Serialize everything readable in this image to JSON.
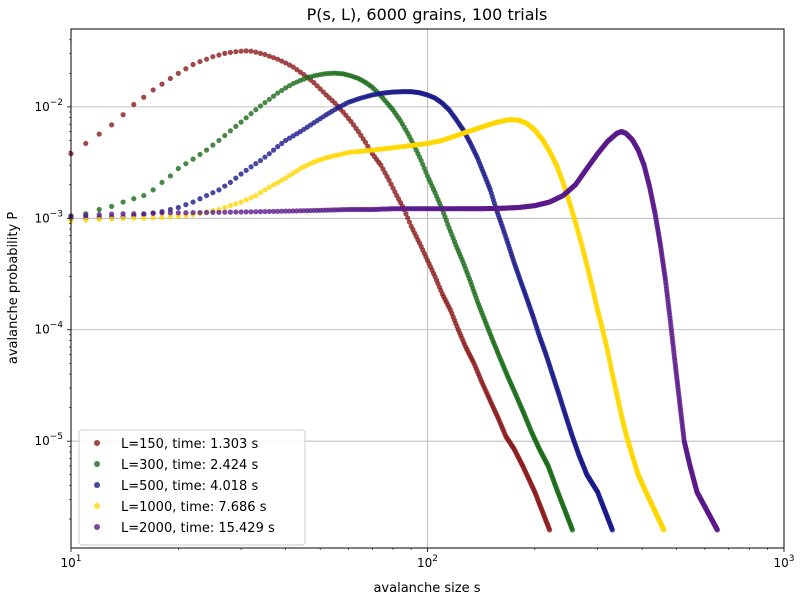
{
  "chart_data": {
    "type": "scatter",
    "title": "P(s, L), 6000 grains, 100 trials",
    "xlabel": "avalanche size s",
    "ylabel": "avalanche probability P",
    "xscale": "log",
    "yscale": "log",
    "xlim": [
      10,
      1000
    ],
    "ylim": [
      1.1e-06,
      0.05
    ],
    "grid": true,
    "legend_position": "lower-left",
    "x_ticks": [
      {
        "value": 10,
        "base": "10",
        "exp": "1"
      },
      {
        "value": 100,
        "base": "10",
        "exp": "2"
      },
      {
        "value": 1000,
        "base": "10",
        "exp": "3"
      }
    ],
    "y_ticks": [
      {
        "value": 1e-05,
        "base": "10",
        "exp": "−5"
      },
      {
        "value": 0.0001,
        "base": "10",
        "exp": "−4"
      },
      {
        "value": 0.001,
        "base": "10",
        "exp": "−3"
      },
      {
        "value": 0.01,
        "base": "10",
        "exp": "−2"
      }
    ],
    "series": [
      {
        "name": "L=150, time: 1.303 s",
        "color": "#8b1a1a",
        "points": [
          [
            10,
            0.0038
          ],
          [
            11,
            0.0047
          ],
          [
            12,
            0.0057
          ],
          [
            13,
            0.0069
          ],
          [
            14,
            0.0085
          ],
          [
            15,
            0.0105
          ],
          [
            16,
            0.0122
          ],
          [
            17,
            0.0142
          ],
          [
            18,
            0.016
          ],
          [
            19,
            0.018
          ],
          [
            20,
            0.02
          ],
          [
            21,
            0.022
          ],
          [
            22,
            0.024
          ],
          [
            23,
            0.0255
          ],
          [
            24,
            0.0268
          ],
          [
            25,
            0.0282
          ],
          [
            26,
            0.0292
          ],
          [
            27,
            0.0302
          ],
          [
            28,
            0.0308
          ],
          [
            29,
            0.0313
          ],
          [
            30,
            0.0316
          ],
          [
            31,
            0.0318
          ],
          [
            32,
            0.0316
          ],
          [
            33,
            0.031
          ],
          [
            34,
            0.0302
          ],
          [
            35,
            0.0295
          ],
          [
            36,
            0.0285
          ],
          [
            38,
            0.0268
          ],
          [
            40,
            0.0248
          ],
          [
            42,
            0.0228
          ],
          [
            44,
            0.0205
          ],
          [
            46,
            0.0185
          ],
          [
            48,
            0.0165
          ],
          [
            50,
            0.0145
          ],
          [
            52,
            0.0128
          ],
          [
            55,
            0.0108
          ],
          [
            58,
            0.009
          ],
          [
            61,
            0.0074
          ],
          [
            64,
            0.006
          ],
          [
            67,
            0.0048
          ],
          [
            70,
            0.0038
          ],
          [
            74,
            0.003
          ],
          [
            78,
            0.0022
          ],
          [
            82,
            0.0016
          ],
          [
            86,
            0.0012
          ],
          [
            90,
            0.00085
          ],
          [
            95,
            0.0006
          ],
          [
            100,
            0.00042
          ],
          [
            105,
            0.0003
          ],
          [
            110,
            0.00021
          ],
          [
            116,
            0.00015
          ],
          [
            122,
            0.0001
          ],
          [
            128,
            7e-05
          ],
          [
            135,
            5e-05
          ],
          [
            142,
            3.4e-05
          ],
          [
            150,
            2.3e-05
          ],
          [
            158,
            1.6e-05
          ],
          [
            166,
            1.1e-05
          ],
          [
            175,
            8.5e-06
          ],
          [
            185,
            6e-06
          ],
          [
            200,
            3.5e-06
          ],
          [
            220,
            1.6e-06
          ]
        ]
      },
      {
        "name": "L=300, time: 2.424 s",
        "color": "#1a6b1a",
        "points": [
          [
            10,
            0.00105
          ],
          [
            11,
            0.0011
          ],
          [
            12,
            0.0012
          ],
          [
            13,
            0.00128
          ],
          [
            14,
            0.0014
          ],
          [
            15,
            0.0015
          ],
          [
            16,
            0.0016
          ],
          [
            17,
            0.0018
          ],
          [
            18,
            0.0021
          ],
          [
            19,
            0.0024
          ],
          [
            20,
            0.0028
          ],
          [
            22,
            0.0034
          ],
          [
            24,
            0.0041
          ],
          [
            26,
            0.005
          ],
          [
            28,
            0.0061
          ],
          [
            30,
            0.0073
          ],
          [
            32,
            0.0087
          ],
          [
            34,
            0.0102
          ],
          [
            36,
            0.0117
          ],
          [
            38,
            0.0133
          ],
          [
            40,
            0.0148
          ],
          [
            42,
            0.0162
          ],
          [
            44,
            0.0173
          ],
          [
            46,
            0.0182
          ],
          [
            48,
            0.019
          ],
          [
            50,
            0.0195
          ],
          [
            52,
            0.0199
          ],
          [
            55,
            0.0201
          ],
          [
            58,
            0.0198
          ],
          [
            61,
            0.019
          ],
          [
            64,
            0.018
          ],
          [
            67,
            0.0166
          ],
          [
            70,
            0.015
          ],
          [
            73,
            0.0132
          ],
          [
            76,
            0.0114
          ],
          [
            80,
            0.0094
          ],
          [
            84,
            0.0075
          ],
          [
            88,
            0.0058
          ],
          [
            92,
            0.0044
          ],
          [
            96,
            0.0033
          ],
          [
            100,
            0.0024
          ],
          [
            105,
            0.0017
          ],
          [
            110,
            0.0012
          ],
          [
            115,
            0.00082
          ],
          [
            120,
            0.00058
          ],
          [
            126,
            0.0004
          ],
          [
            132,
            0.00027
          ],
          [
            138,
            0.00018
          ],
          [
            145,
            0.00012
          ],
          [
            152,
            8.2e-05
          ],
          [
            160,
            5.5e-05
          ],
          [
            168,
            3.8e-05
          ],
          [
            177,
            2.6e-05
          ],
          [
            186,
            1.8e-05
          ],
          [
            196,
            1.2e-05
          ],
          [
            206,
            8.5e-06
          ],
          [
            218,
            6e-06
          ],
          [
            232,
            3.5e-06
          ],
          [
            255,
            1.6e-06
          ]
        ]
      },
      {
        "name": "L=500, time: 4.018 s",
        "color": "#1a1a8b",
        "points": [
          [
            10,
            0.001
          ],
          [
            12,
            0.00102
          ],
          [
            14,
            0.00103
          ],
          [
            16,
            0.00108
          ],
          [
            18,
            0.00115
          ],
          [
            20,
            0.00125
          ],
          [
            22,
            0.0014
          ],
          [
            24,
            0.0016
          ],
          [
            26,
            0.0018
          ],
          [
            28,
            0.0021
          ],
          [
            30,
            0.0025
          ],
          [
            32,
            0.0029
          ],
          [
            34,
            0.0033
          ],
          [
            36,
            0.0038
          ],
          [
            38,
            0.0044
          ],
          [
            40,
            0.005
          ],
          [
            44,
            0.006
          ],
          [
            48,
            0.0072
          ],
          [
            52,
            0.0085
          ],
          [
            56,
            0.0098
          ],
          [
            60,
            0.011
          ],
          [
            65,
            0.012
          ],
          [
            70,
            0.0128
          ],
          [
            75,
            0.0133
          ],
          [
            80,
            0.0136
          ],
          [
            85,
            0.0137
          ],
          [
            90,
            0.0137
          ],
          [
            95,
            0.0134
          ],
          [
            100,
            0.0128
          ],
          [
            105,
            0.012
          ],
          [
            110,
            0.0108
          ],
          [
            115,
            0.0094
          ],
          [
            120,
            0.0078
          ],
          [
            126,
            0.0062
          ],
          [
            132,
            0.0047
          ],
          [
            138,
            0.0035
          ],
          [
            144,
            0.0025
          ],
          [
            150,
            0.0018
          ],
          [
            156,
            0.0012
          ],
          [
            162,
            0.00085
          ],
          [
            168,
            0.0006
          ],
          [
            175,
            0.0004
          ],
          [
            182,
            0.00028
          ],
          [
            190,
            0.00019
          ],
          [
            198,
            0.00013
          ],
          [
            206,
            8.8e-05
          ],
          [
            215,
            6e-05
          ],
          [
            224,
            4e-05
          ],
          [
            234,
            2.6e-05
          ],
          [
            244,
            1.7e-05
          ],
          [
            255,
            1.1e-05
          ],
          [
            266,
            7.5e-06
          ],
          [
            280,
            5e-06
          ],
          [
            300,
            3.5e-06
          ],
          [
            330,
            1.6e-06
          ]
        ]
      },
      {
        "name": "L=1000, time: 7.686 s",
        "color": "#ffd700",
        "points": [
          [
            10,
            0.00095
          ],
          [
            12,
            0.00098
          ],
          [
            14,
            0.001
          ],
          [
            16,
            0.001
          ],
          [
            18,
            0.00102
          ],
          [
            20,
            0.00104
          ],
          [
            22,
            0.00108
          ],
          [
            24,
            0.00114
          ],
          [
            26,
            0.0012
          ],
          [
            28,
            0.0013
          ],
          [
            30,
            0.0014
          ],
          [
            33,
            0.0016
          ],
          [
            36,
            0.0019
          ],
          [
            40,
            0.0023
          ],
          [
            44,
            0.0028
          ],
          [
            48,
            0.0032
          ],
          [
            52,
            0.0035
          ],
          [
            56,
            0.0037
          ],
          [
            60,
            0.0039
          ],
          [
            65,
            0.004
          ],
          [
            70,
            0.0041
          ],
          [
            75,
            0.0042
          ],
          [
            80,
            0.0043
          ],
          [
            90,
            0.0045
          ],
          [
            100,
            0.0047
          ],
          [
            110,
            0.005
          ],
          [
            120,
            0.0055
          ],
          [
            130,
            0.006
          ],
          [
            140,
            0.0065
          ],
          [
            150,
            0.007
          ],
          [
            160,
            0.0074
          ],
          [
            170,
            0.0077
          ],
          [
            180,
            0.0076
          ],
          [
            190,
            0.0071
          ],
          [
            200,
            0.0062
          ],
          [
            210,
            0.0051
          ],
          [
            220,
            0.004
          ],
          [
            230,
            0.003
          ],
          [
            240,
            0.0021
          ],
          [
            250,
            0.0014
          ],
          [
            260,
            0.00092
          ],
          [
            270,
            0.0006
          ],
          [
            280,
            0.00038
          ],
          [
            290,
            0.00024
          ],
          [
            300,
            0.00015
          ],
          [
            310,
            0.0001
          ],
          [
            320,
            6.5e-05
          ],
          [
            330,
            4e-05
          ],
          [
            340,
            2.6e-05
          ],
          [
            350,
            1.7e-05
          ],
          [
            362,
            1.1e-05
          ],
          [
            375,
            7.5e-06
          ],
          [
            390,
            5e-06
          ],
          [
            410,
            3.5e-06
          ],
          [
            460,
            1.6e-06
          ]
        ]
      },
      {
        "name": "L=2000, time: 15.429 s",
        "color": "#5b1a8b",
        "points": [
          [
            10,
            0.00105
          ],
          [
            12,
            0.00108
          ],
          [
            14,
            0.0011
          ],
          [
            16,
            0.0011
          ],
          [
            18,
            0.00112
          ],
          [
            20,
            0.00112
          ],
          [
            25,
            0.00113
          ],
          [
            30,
            0.00114
          ],
          [
            35,
            0.00115
          ],
          [
            40,
            0.00116
          ],
          [
            50,
            0.00118
          ],
          [
            60,
            0.0012
          ],
          [
            70,
            0.0012
          ],
          [
            80,
            0.00122
          ],
          [
            100,
            0.00122
          ],
          [
            120,
            0.00122
          ],
          [
            140,
            0.00122
          ],
          [
            160,
            0.00123
          ],
          [
            180,
            0.00125
          ],
          [
            200,
            0.0013
          ],
          [
            220,
            0.0014
          ],
          [
            240,
            0.0016
          ],
          [
            260,
            0.002
          ],
          [
            280,
            0.0028
          ],
          [
            300,
            0.0038
          ],
          [
            320,
            0.0049
          ],
          [
            340,
            0.0058
          ],
          [
            350,
            0.006
          ],
          [
            360,
            0.0058
          ],
          [
            375,
            0.0051
          ],
          [
            390,
            0.0041
          ],
          [
            405,
            0.003
          ],
          [
            420,
            0.0019
          ],
          [
            435,
            0.0011
          ],
          [
            450,
            0.00058
          ],
          [
            465,
            0.00028
          ],
          [
            480,
            0.00012
          ],
          [
            495,
            5e-05
          ],
          [
            510,
            2.2e-05
          ],
          [
            525,
            1e-05
          ],
          [
            545,
            6e-06
          ],
          [
            570,
            3.5e-06
          ],
          [
            650,
            1.6e-06
          ]
        ]
      }
    ]
  }
}
